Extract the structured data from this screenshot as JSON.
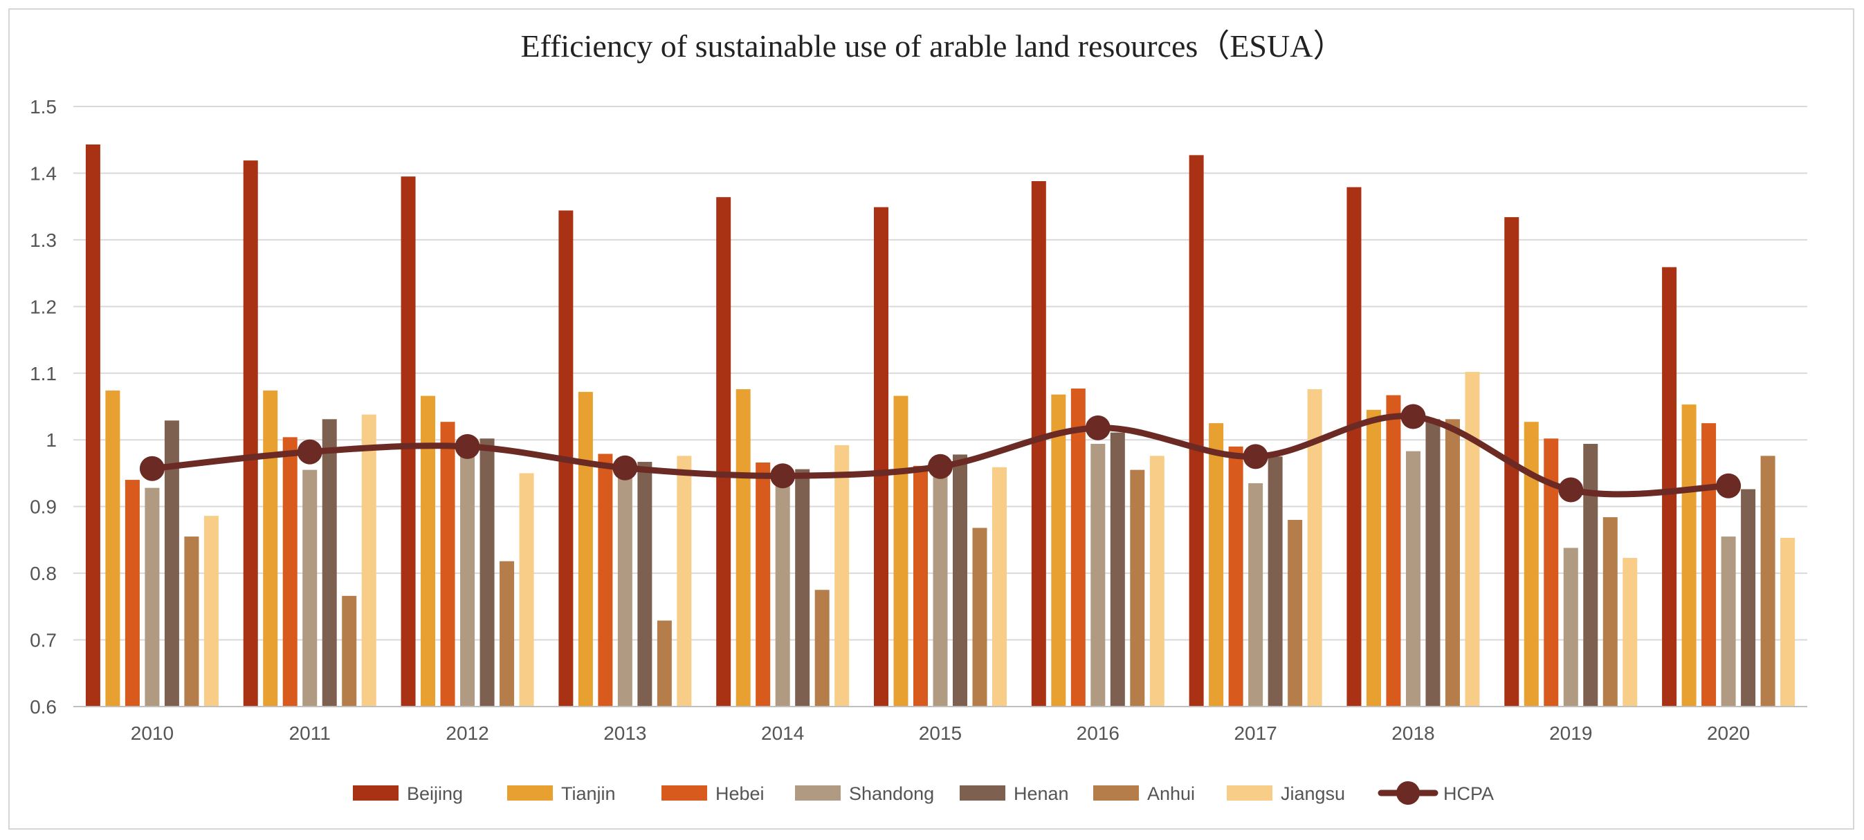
{
  "chart_data": {
    "type": "bar",
    "title": "Efficiency of sustainable use of arable land resources（ESUA）",
    "xlabel": "",
    "ylabel": "",
    "ylim": [
      0.6,
      1.5
    ],
    "yticks": [
      "0.6",
      "0.7",
      "0.8",
      "0.9",
      "1",
      "1.1",
      "1.2",
      "1.3",
      "1.4",
      "1.5"
    ],
    "grid": true,
    "legend_position": "bottom",
    "categories": [
      "2010",
      "2011",
      "2012",
      "2013",
      "2014",
      "2015",
      "2016",
      "2017",
      "2018",
      "2019",
      "2020"
    ],
    "series": [
      {
        "name": "Beijing",
        "color": "#a93214",
        "values": [
          1.443,
          1.419,
          1.395,
          1.344,
          1.364,
          1.349,
          1.388,
          1.427,
          1.379,
          1.334,
          1.259
        ]
      },
      {
        "name": "Tianjin",
        "color": "#e8a030",
        "values": [
          1.074,
          1.074,
          1.066,
          1.072,
          1.076,
          1.066,
          1.068,
          1.025,
          1.045,
          1.027,
          1.053
        ]
      },
      {
        "name": "Hebei",
        "color": "#d85a1c",
        "values": [
          0.94,
          1.004,
          1.027,
          0.979,
          0.966,
          0.961,
          1.077,
          0.99,
          1.067,
          1.002,
          1.025
        ]
      },
      {
        "name": "Shandong",
        "color": "#b09a82",
        "values": [
          0.928,
          0.955,
          0.995,
          0.962,
          0.957,
          0.97,
          0.994,
          0.935,
          0.983,
          0.838,
          0.855
        ]
      },
      {
        "name": "Henan",
        "color": "#7d6050",
        "values": [
          1.029,
          1.031,
          1.002,
          0.967,
          0.956,
          0.978,
          1.011,
          0.975,
          1.031,
          0.994,
          0.926
        ]
      },
      {
        "name": "Anhui",
        "color": "#b47d4a",
        "values": [
          0.855,
          0.766,
          0.818,
          0.729,
          0.775,
          0.868,
          0.955,
          0.88,
          1.031,
          0.884,
          0.976
        ]
      },
      {
        "name": "Jiangsu",
        "color": "#f8cd87",
        "values": [
          0.886,
          1.038,
          0.95,
          0.976,
          0.992,
          0.959,
          0.976,
          1.076,
          1.102,
          0.823,
          0.853
        ]
      }
    ],
    "line": {
      "name": "HCPA",
      "color": "#6b2a24",
      "values": [
        0.957,
        0.982,
        0.99,
        0.958,
        0.946,
        0.96,
        1.018,
        0.975,
        1.035,
        0.925,
        0.931
      ]
    }
  }
}
